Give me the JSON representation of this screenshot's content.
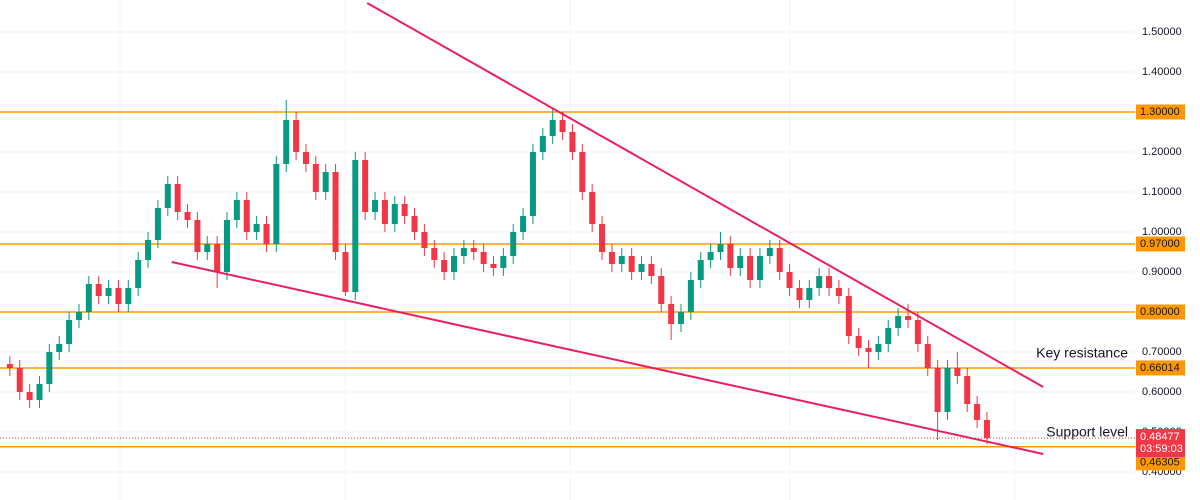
{
  "chart_data": {
    "type": "candlestick",
    "up_color": "#089981",
    "down_color": "#f23645",
    "xlim": [
      -1,
      114
    ],
    "ylim": [
      0.33,
      1.58
    ],
    "yticks": [
      {
        "value": 0.4,
        "label": "0.40000"
      },
      {
        "value": 0.5,
        "label": "0.50000"
      },
      {
        "value": 0.6,
        "label": "0.60000"
      },
      {
        "value": 0.7,
        "label": "0.70000"
      },
      {
        "value": 0.8,
        "label": "0.80000"
      },
      {
        "value": 0.9,
        "label": "0.90000"
      },
      {
        "value": 1.0,
        "label": "1.00000"
      },
      {
        "value": 1.1,
        "label": "1.10000"
      },
      {
        "value": 1.2,
        "label": "1.20000"
      },
      {
        "value": 1.3,
        "label": "1.30000"
      },
      {
        "value": 1.4,
        "label": "1.40000"
      },
      {
        "value": 1.5,
        "label": "1.50000"
      }
    ],
    "grid": true,
    "open": [
      0.67,
      0.66,
      0.6,
      0.58,
      0.62,
      0.7,
      0.72,
      0.78,
      0.8,
      0.87,
      0.84,
      0.86,
      0.82,
      0.86,
      0.93,
      0.98,
      1.06,
      1.12,
      1.05,
      1.03,
      0.95,
      0.97,
      0.9,
      1.03,
      1.08,
      1.0,
      1.02,
      0.97,
      1.17,
      1.28,
      1.2,
      1.17,
      1.1,
      1.15,
      0.95,
      0.85,
      1.18,
      1.05,
      1.08,
      1.02,
      1.07,
      1.04,
      1.0,
      0.96,
      0.93,
      0.9,
      0.94,
      0.96,
      0.95,
      0.92,
      0.91,
      0.94,
      1.0,
      1.04,
      1.2,
      1.24,
      1.28,
      1.25,
      1.2,
      1.1,
      1.02,
      0.95,
      0.92,
      0.94,
      0.9,
      0.92,
      0.89,
      0.82,
      0.77,
      0.8,
      0.88,
      0.93,
      0.95,
      0.97,
      0.91,
      0.94,
      0.88,
      0.94,
      0.96,
      0.9,
      0.86,
      0.83,
      0.86,
      0.89,
      0.86,
      0.84,
      0.74,
      0.71,
      0.7,
      0.72,
      0.76,
      0.79,
      0.78,
      0.72,
      0.66,
      0.55,
      0.66,
      0.64,
      0.57,
      0.53
    ],
    "high": [
      0.69,
      0.68,
      0.62,
      0.64,
      0.72,
      0.74,
      0.8,
      0.82,
      0.89,
      0.89,
      0.88,
      0.88,
      0.88,
      0.95,
      1.0,
      1.08,
      1.14,
      1.14,
      1.07,
      1.05,
      0.99,
      0.99,
      1.05,
      1.1,
      1.1,
      1.04,
      1.04,
      1.19,
      1.33,
      1.3,
      1.22,
      1.19,
      1.17,
      1.17,
      0.97,
      1.2,
      1.2,
      1.1,
      1.1,
      1.09,
      1.09,
      1.06,
      1.02,
      0.98,
      0.95,
      0.96,
      0.98,
      0.98,
      0.97,
      0.94,
      0.96,
      1.02,
      1.06,
      1.22,
      1.26,
      1.31,
      1.3,
      1.27,
      1.22,
      1.12,
      1.04,
      0.97,
      0.96,
      0.96,
      0.94,
      0.94,
      0.91,
      0.84,
      0.82,
      0.9,
      0.95,
      0.97,
      1.0,
      0.99,
      0.96,
      0.96,
      0.96,
      0.98,
      0.98,
      0.92,
      0.88,
      0.88,
      0.91,
      0.91,
      0.88,
      0.86,
      0.76,
      0.73,
      0.74,
      0.78,
      0.81,
      0.82,
      0.8,
      0.74,
      0.68,
      0.68,
      0.7,
      0.66,
      0.59,
      0.55
    ],
    "low": [
      0.64,
      0.58,
      0.56,
      0.56,
      0.6,
      0.68,
      0.7,
      0.76,
      0.78,
      0.82,
      0.82,
      0.8,
      0.8,
      0.84,
      0.91,
      0.96,
      1.04,
      1.03,
      1.01,
      0.93,
      0.93,
      0.86,
      0.88,
      1.01,
      0.98,
      0.98,
      0.95,
      0.95,
      1.15,
      1.18,
      1.15,
      1.08,
      1.08,
      0.93,
      0.84,
      0.83,
      1.03,
      1.03,
      1.0,
      1.0,
      1.02,
      0.98,
      0.94,
      0.91,
      0.88,
      0.88,
      0.92,
      0.93,
      0.9,
      0.89,
      0.89,
      0.92,
      0.98,
      1.02,
      1.18,
      1.22,
      1.23,
      1.18,
      1.08,
      1.0,
      0.93,
      0.9,
      0.9,
      0.88,
      0.88,
      0.87,
      0.8,
      0.73,
      0.75,
      0.78,
      0.86,
      0.91,
      0.93,
      0.89,
      0.89,
      0.86,
      0.86,
      0.92,
      0.88,
      0.84,
      0.81,
      0.81,
      0.84,
      0.84,
      0.82,
      0.72,
      0.69,
      0.66,
      0.68,
      0.7,
      0.74,
      0.76,
      0.7,
      0.64,
      0.48,
      0.53,
      0.62,
      0.55,
      0.51,
      0.47
    ],
    "close": [
      0.66,
      0.6,
      0.58,
      0.62,
      0.7,
      0.72,
      0.78,
      0.8,
      0.87,
      0.84,
      0.86,
      0.82,
      0.86,
      0.93,
      0.98,
      1.06,
      1.12,
      1.05,
      1.03,
      0.95,
      0.97,
      0.9,
      1.03,
      1.08,
      1.0,
      1.02,
      0.97,
      1.17,
      1.28,
      1.2,
      1.17,
      1.1,
      1.15,
      0.95,
      0.85,
      1.18,
      1.05,
      1.08,
      1.02,
      1.07,
      1.04,
      1.0,
      0.96,
      0.93,
      0.9,
      0.94,
      0.96,
      0.95,
      0.92,
      0.91,
      0.94,
      1.0,
      1.04,
      1.2,
      1.24,
      1.28,
      1.25,
      1.2,
      1.1,
      1.02,
      0.95,
      0.92,
      0.94,
      0.9,
      0.92,
      0.89,
      0.82,
      0.77,
      0.8,
      0.88,
      0.93,
      0.95,
      0.97,
      0.91,
      0.94,
      0.88,
      0.94,
      0.96,
      0.9,
      0.86,
      0.83,
      0.86,
      0.89,
      0.86,
      0.84,
      0.74,
      0.71,
      0.7,
      0.72,
      0.76,
      0.79,
      0.78,
      0.72,
      0.66,
      0.55,
      0.66,
      0.64,
      0.57,
      0.53,
      0.48477
    ],
    "levels": {
      "color": "#ff9800",
      "items": [
        {
          "value": 1.3,
          "label": "1.30000"
        },
        {
          "value": 0.97,
          "label": "0.97000"
        },
        {
          "value": 0.8,
          "label": "0.80000"
        },
        {
          "value": 0.66014,
          "label": "0.66014"
        },
        {
          "value": 0.46305,
          "label": "0.46305"
        }
      ]
    },
    "trend_lines": {
      "color": "#e91e63",
      "items": [
        {
          "x": [
            36.2,
            104.7
          ],
          "y": [
            1.5725,
            0.6125
          ]
        },
        {
          "x": [
            16.4,
            104.7
          ],
          "y": [
            0.925,
            0.445
          ]
        }
      ]
    },
    "last_price": {
      "value": 0.48477,
      "label": "0.48477",
      "countdown": "03:59:03",
      "color": "#f23645"
    },
    "annotations": [
      "Key resistance",
      "Support level"
    ]
  }
}
